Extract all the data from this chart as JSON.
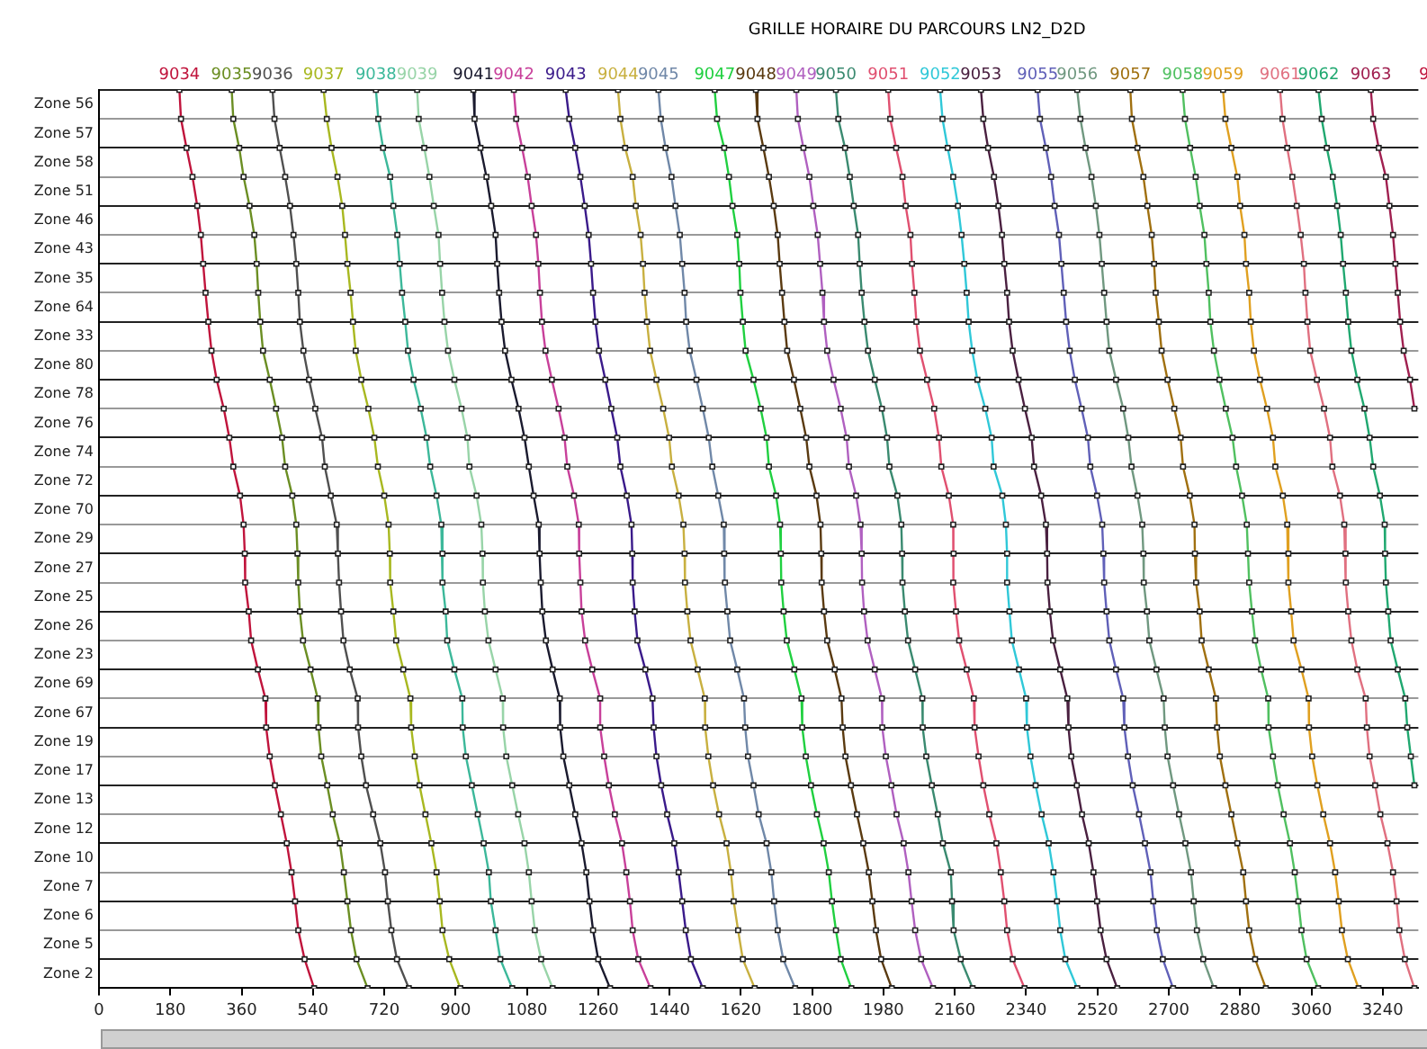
{
  "chart_data": {
    "type": "line",
    "title": "GRILLE HORAIRE DU PARCOURS LN2_D2D",
    "orientation": "horizontal",
    "marker": "square",
    "grid": "y",
    "annotations": [
      "9"
    ],
    "categories": [
      null,
      "Zone 56",
      "Zone 57",
      "Zone 58",
      "Zone 51",
      "Zone 46",
      "Zone 43",
      "Zone 35",
      "Zone 64",
      "Zone 33",
      "Zone 80",
      "Zone 78",
      "Zone 76",
      "Zone 74",
      "Zone 72",
      "Zone 70",
      "Zone 29",
      "Zone 27",
      "Zone 25",
      "Zone 26",
      "Zone 23",
      "Zone 69",
      "Zone 67",
      "Zone 19",
      "Zone 17",
      "Zone 13",
      "Zone 12",
      "Zone 10",
      "Zone 7",
      "Zone 6",
      "Zone 5",
      "Zone 2"
    ],
    "xlim": [
      0,
      3330
    ],
    "xticks": [
      0,
      180,
      360,
      540,
      720,
      900,
      1080,
      1260,
      1440,
      1620,
      1800,
      1980,
      2160,
      2340,
      2520,
      2700,
      2880,
      3060,
      3240
    ],
    "series": [
      {
        "name": "9034",
        "color": "#c0143c",
        "values": [
          203,
          207,
          221,
          236,
          248,
          257,
          263,
          269,
          276,
          284,
          297,
          315,
          329,
          339,
          356,
          365,
          368,
          369,
          378,
          384,
          401,
          420,
          422,
          431,
          444,
          459,
          474,
          486,
          495,
          503,
          519,
          543
        ]
      },
      {
        "name": "9035",
        "color": "#6b8e23",
        "values": [
          335,
          339,
          354,
          365,
          380,
          392,
          398,
          402,
          407,
          414,
          431,
          447,
          462,
          470,
          488,
          498,
          501,
          503,
          507,
          515,
          534,
          552,
          554,
          561,
          576,
          590,
          608,
          618,
          627,
          636,
          650,
          678
        ]
      },
      {
        "name": "9036",
        "color": "#505050",
        "values": [
          438,
          443,
          456,
          470,
          482,
          491,
          498,
          503,
          507,
          516,
          530,
          546,
          563,
          570,
          585,
          600,
          603,
          606,
          611,
          617,
          633,
          653,
          654,
          662,
          674,
          692,
          710,
          722,
          729,
          738,
          752,
          782
        ]
      },
      {
        "name": "9037",
        "color": "#a8b820",
        "values": [
          567,
          575,
          587,
          602,
          614,
          621,
          627,
          635,
          641,
          648,
          662,
          680,
          695,
          704,
          720,
          731,
          734,
          735,
          743,
          750,
          768,
          786,
          788,
          797,
          809,
          824,
          839,
          852,
          860,
          867,
          884,
          912
        ]
      },
      {
        "name": "9038",
        "color": "#3cb89a",
        "values": [
          699,
          705,
          717,
          735,
          743,
          753,
          759,
          765,
          773,
          780,
          794,
          812,
          827,
          836,
          852,
          864,
          867,
          867,
          875,
          879,
          897,
          917,
          918,
          926,
          941,
          956,
          971,
          984,
          989,
          1001,
          1013,
          1043
        ]
      },
      {
        "name": "9039",
        "color": "#98d4a8",
        "values": [
          803,
          807,
          821,
          834,
          845,
          857,
          861,
          866,
          872,
          881,
          897,
          915,
          930,
          935,
          953,
          965,
          968,
          969,
          974,
          983,
          1001,
          1019,
          1020,
          1028,
          1043,
          1058,
          1074,
          1085,
          1092,
          1100,
          1116,
          1145
        ]
      },
      {
        "name": "9041",
        "color": "#1a1a2e",
        "values": [
          945,
          948,
          963,
          978,
          990,
          1001,
          1005,
          1010,
          1016,
          1025,
          1041,
          1059,
          1074,
          1085,
          1097,
          1110,
          1112,
          1115,
          1119,
          1128,
          1145,
          1163,
          1164,
          1172,
          1187,
          1202,
          1218,
          1230,
          1238,
          1247,
          1260,
          1290
        ]
      },
      {
        "name": "9042",
        "color": "#c8409a",
        "values": [
          1047,
          1053,
          1068,
          1082,
          1092,
          1103,
          1109,
          1113,
          1118,
          1127,
          1143,
          1160,
          1175,
          1182,
          1199,
          1211,
          1212,
          1215,
          1218,
          1227,
          1245,
          1265,
          1265,
          1275,
          1287,
          1302,
          1320,
          1331,
          1340,
          1347,
          1361,
          1392
        ]
      },
      {
        "name": "9043",
        "color": "#3a1a8a",
        "values": [
          1178,
          1187,
          1202,
          1215,
          1226,
          1236,
          1242,
          1247,
          1253,
          1262,
          1278,
          1293,
          1308,
          1316,
          1332,
          1344,
          1346,
          1347,
          1352,
          1359,
          1379,
          1397,
          1400,
          1407,
          1419,
          1434,
          1452,
          1463,
          1472,
          1481,
          1494,
          1524
        ]
      },
      {
        "name": "9044",
        "color": "#c8b040",
        "values": [
          1310,
          1316,
          1328,
          1347,
          1355,
          1367,
          1373,
          1377,
          1383,
          1391,
          1407,
          1424,
          1439,
          1446,
          1463,
          1475,
          1478,
          1479,
          1485,
          1493,
          1511,
          1529,
          1530,
          1538,
          1550,
          1565,
          1584,
          1595,
          1602,
          1613,
          1625,
          1655
        ]
      },
      {
        "name": "9045",
        "color": "#7088a8",
        "values": [
          1412,
          1418,
          1430,
          1445,
          1455,
          1466,
          1472,
          1478,
          1482,
          1491,
          1508,
          1524,
          1539,
          1548,
          1563,
          1577,
          1578,
          1580,
          1586,
          1593,
          1611,
          1628,
          1631,
          1638,
          1652,
          1665,
          1685,
          1697,
          1704,
          1713,
          1727,
          1757
        ]
      },
      {
        "name": "9047",
        "color": "#20d040",
        "values": [
          1554,
          1560,
          1578,
          1590,
          1599,
          1611,
          1616,
          1619,
          1625,
          1632,
          1652,
          1670,
          1685,
          1691,
          1709,
          1719,
          1721,
          1722,
          1728,
          1736,
          1755,
          1773,
          1775,
          1784,
          1797,
          1812,
          1829,
          1842,
          1850,
          1860,
          1872,
          1899
        ]
      },
      {
        "name": "9048",
        "color": "#5a3a10",
        "values": [
          1658,
          1662,
          1677,
          1691,
          1703,
          1713,
          1718,
          1724,
          1730,
          1737,
          1754,
          1770,
          1785,
          1793,
          1811,
          1821,
          1823,
          1824,
          1830,
          1838,
          1857,
          1874,
          1877,
          1884,
          1898,
          1913,
          1929,
          1943,
          1952,
          1961,
          1974,
          2001
        ]
      },
      {
        "name": "9049",
        "color": "#b060c0",
        "values": [
          1760,
          1764,
          1778,
          1793,
          1803,
          1814,
          1820,
          1826,
          1830,
          1838,
          1854,
          1872,
          1887,
          1893,
          1911,
          1922,
          1925,
          1926,
          1931,
          1940,
          1958,
          1976,
          1977,
          1986,
          2000,
          2013,
          2031,
          2043,
          2051,
          2060,
          2075,
          2105
        ]
      },
      {
        "name": "9050",
        "color": "#3a8a70",
        "values": [
          1860,
          1866,
          1883,
          1895,
          1905,
          1916,
          1920,
          1925,
          1932,
          1941,
          1958,
          1976,
          1989,
          1995,
          2015,
          2025,
          2027,
          2028,
          2034,
          2042,
          2060,
          2078,
          2079,
          2088,
          2102,
          2117,
          2130,
          2150,
          2153,
          2157,
          2175,
          2205
        ]
      },
      {
        "name": "9051",
        "color": "#e05070",
        "values": [
          1992,
          1997,
          2012,
          2028,
          2036,
          2048,
          2052,
          2058,
          2063,
          2072,
          2090,
          2108,
          2120,
          2126,
          2145,
          2156,
          2157,
          2156,
          2163,
          2171,
          2190,
          2208,
          2210,
          2220,
          2232,
          2247,
          2265,
          2276,
          2285,
          2292,
          2306,
          2336
        ]
      },
      {
        "name": "9052",
        "color": "#30c8d8",
        "values": [
          2123,
          2129,
          2142,
          2156,
          2168,
          2177,
          2184,
          2190,
          2195,
          2204,
          2217,
          2237,
          2253,
          2258,
          2280,
          2289,
          2292,
          2292,
          2298,
          2304,
          2322,
          2340,
          2342,
          2351,
          2364,
          2379,
          2397,
          2409,
          2418,
          2426,
          2439,
          2469
        ]
      },
      {
        "name": "9053",
        "color": "#4a2040",
        "values": [
          2226,
          2232,
          2244,
          2259,
          2270,
          2279,
          2285,
          2292,
          2297,
          2306,
          2321,
          2337,
          2354,
          2360,
          2378,
          2390,
          2393,
          2394,
          2400,
          2408,
          2426,
          2444,
          2447,
          2454,
          2468,
          2481,
          2498,
          2510,
          2519,
          2528,
          2543,
          2570
        ]
      },
      {
        "name": "9055",
        "color": "#6060b8",
        "values": [
          2369,
          2375,
          2390,
          2403,
          2412,
          2423,
          2429,
          2435,
          2441,
          2450,
          2463,
          2480,
          2496,
          2502,
          2519,
          2532,
          2535,
          2537,
          2543,
          2550,
          2567,
          2585,
          2588,
          2597,
          2609,
          2625,
          2640,
          2654,
          2661,
          2670,
          2685,
          2711
        ]
      },
      {
        "name": "9056",
        "color": "#709880",
        "values": [
          2469,
          2477,
          2490,
          2505,
          2516,
          2525,
          2531,
          2537,
          2543,
          2550,
          2567,
          2585,
          2598,
          2606,
          2621,
          2633,
          2636,
          2637,
          2645,
          2651,
          2669,
          2687,
          2690,
          2697,
          2711,
          2726,
          2742,
          2756,
          2763,
          2771,
          2787,
          2814
        ]
      },
      {
        "name": "9057",
        "color": "#a07010",
        "values": [
          2603,
          2607,
          2621,
          2636,
          2646,
          2657,
          2663,
          2667,
          2675,
          2682,
          2697,
          2714,
          2730,
          2736,
          2753,
          2765,
          2766,
          2769,
          2778,
          2783,
          2801,
          2819,
          2822,
          2829,
          2843,
          2858,
          2873,
          2888,
          2895,
          2903,
          2918,
          2945
        ]
      },
      {
        "name": "9058",
        "color": "#50c060",
        "values": [
          2735,
          2741,
          2754,
          2768,
          2778,
          2790,
          2795,
          2801,
          2805,
          2814,
          2828,
          2844,
          2861,
          2870,
          2885,
          2897,
          2900,
          2903,
          2910,
          2918,
          2933,
          2951,
          2952,
          2963,
          2975,
          2990,
          3006,
          3018,
          3027,
          3035,
          3048,
          3077
        ]
      },
      {
        "name": "9059",
        "color": "#e0a020",
        "values": [
          2837,
          2843,
          2858,
          2873,
          2880,
          2891,
          2895,
          2903,
          2907,
          2915,
          2930,
          2948,
          2963,
          2969,
          2988,
          2999,
          3002,
          3002,
          3009,
          3015,
          3035,
          3053,
          3054,
          3062,
          3075,
          3090,
          3107,
          3120,
          3129,
          3137,
          3152,
          3179
        ]
      },
      {
        "name": "9061",
        "color": "#e07080",
        "values": [
          2981,
          2987,
          2999,
          3012,
          3023,
          3033,
          3041,
          3045,
          3050,
          3057,
          3074,
          3092,
          3107,
          3113,
          3132,
          3143,
          3146,
          3147,
          3153,
          3161,
          3176,
          3197,
          3200,
          3207,
          3221,
          3234,
          3252,
          3266,
          3275,
          3282,
          3296,
          3320
        ]
      },
      {
        "name": "9062",
        "color": "#20a870",
        "values": [
          3078,
          3086,
          3099,
          3114,
          3125,
          3134,
          3140,
          3147,
          3153,
          3161,
          3176,
          3194,
          3207,
          3216,
          3233,
          3245,
          3246,
          3248,
          3254,
          3260,
          3278,
          3297,
          3302,
          3311,
          3320,
          null,
          null,
          null,
          null,
          null,
          null,
          null
        ]
      },
      {
        "name": "9063",
        "color": "#a02050",
        "values": [
          3210,
          3216,
          3230,
          3248,
          3257,
          3266,
          3272,
          3278,
          3284,
          3293,
          3309,
          3320,
          null,
          null,
          null,
          null,
          null,
          null,
          null,
          null,
          null,
          null,
          null,
          null,
          null,
          null,
          null,
          null,
          null,
          null,
          null,
          null
        ]
      }
    ]
  }
}
